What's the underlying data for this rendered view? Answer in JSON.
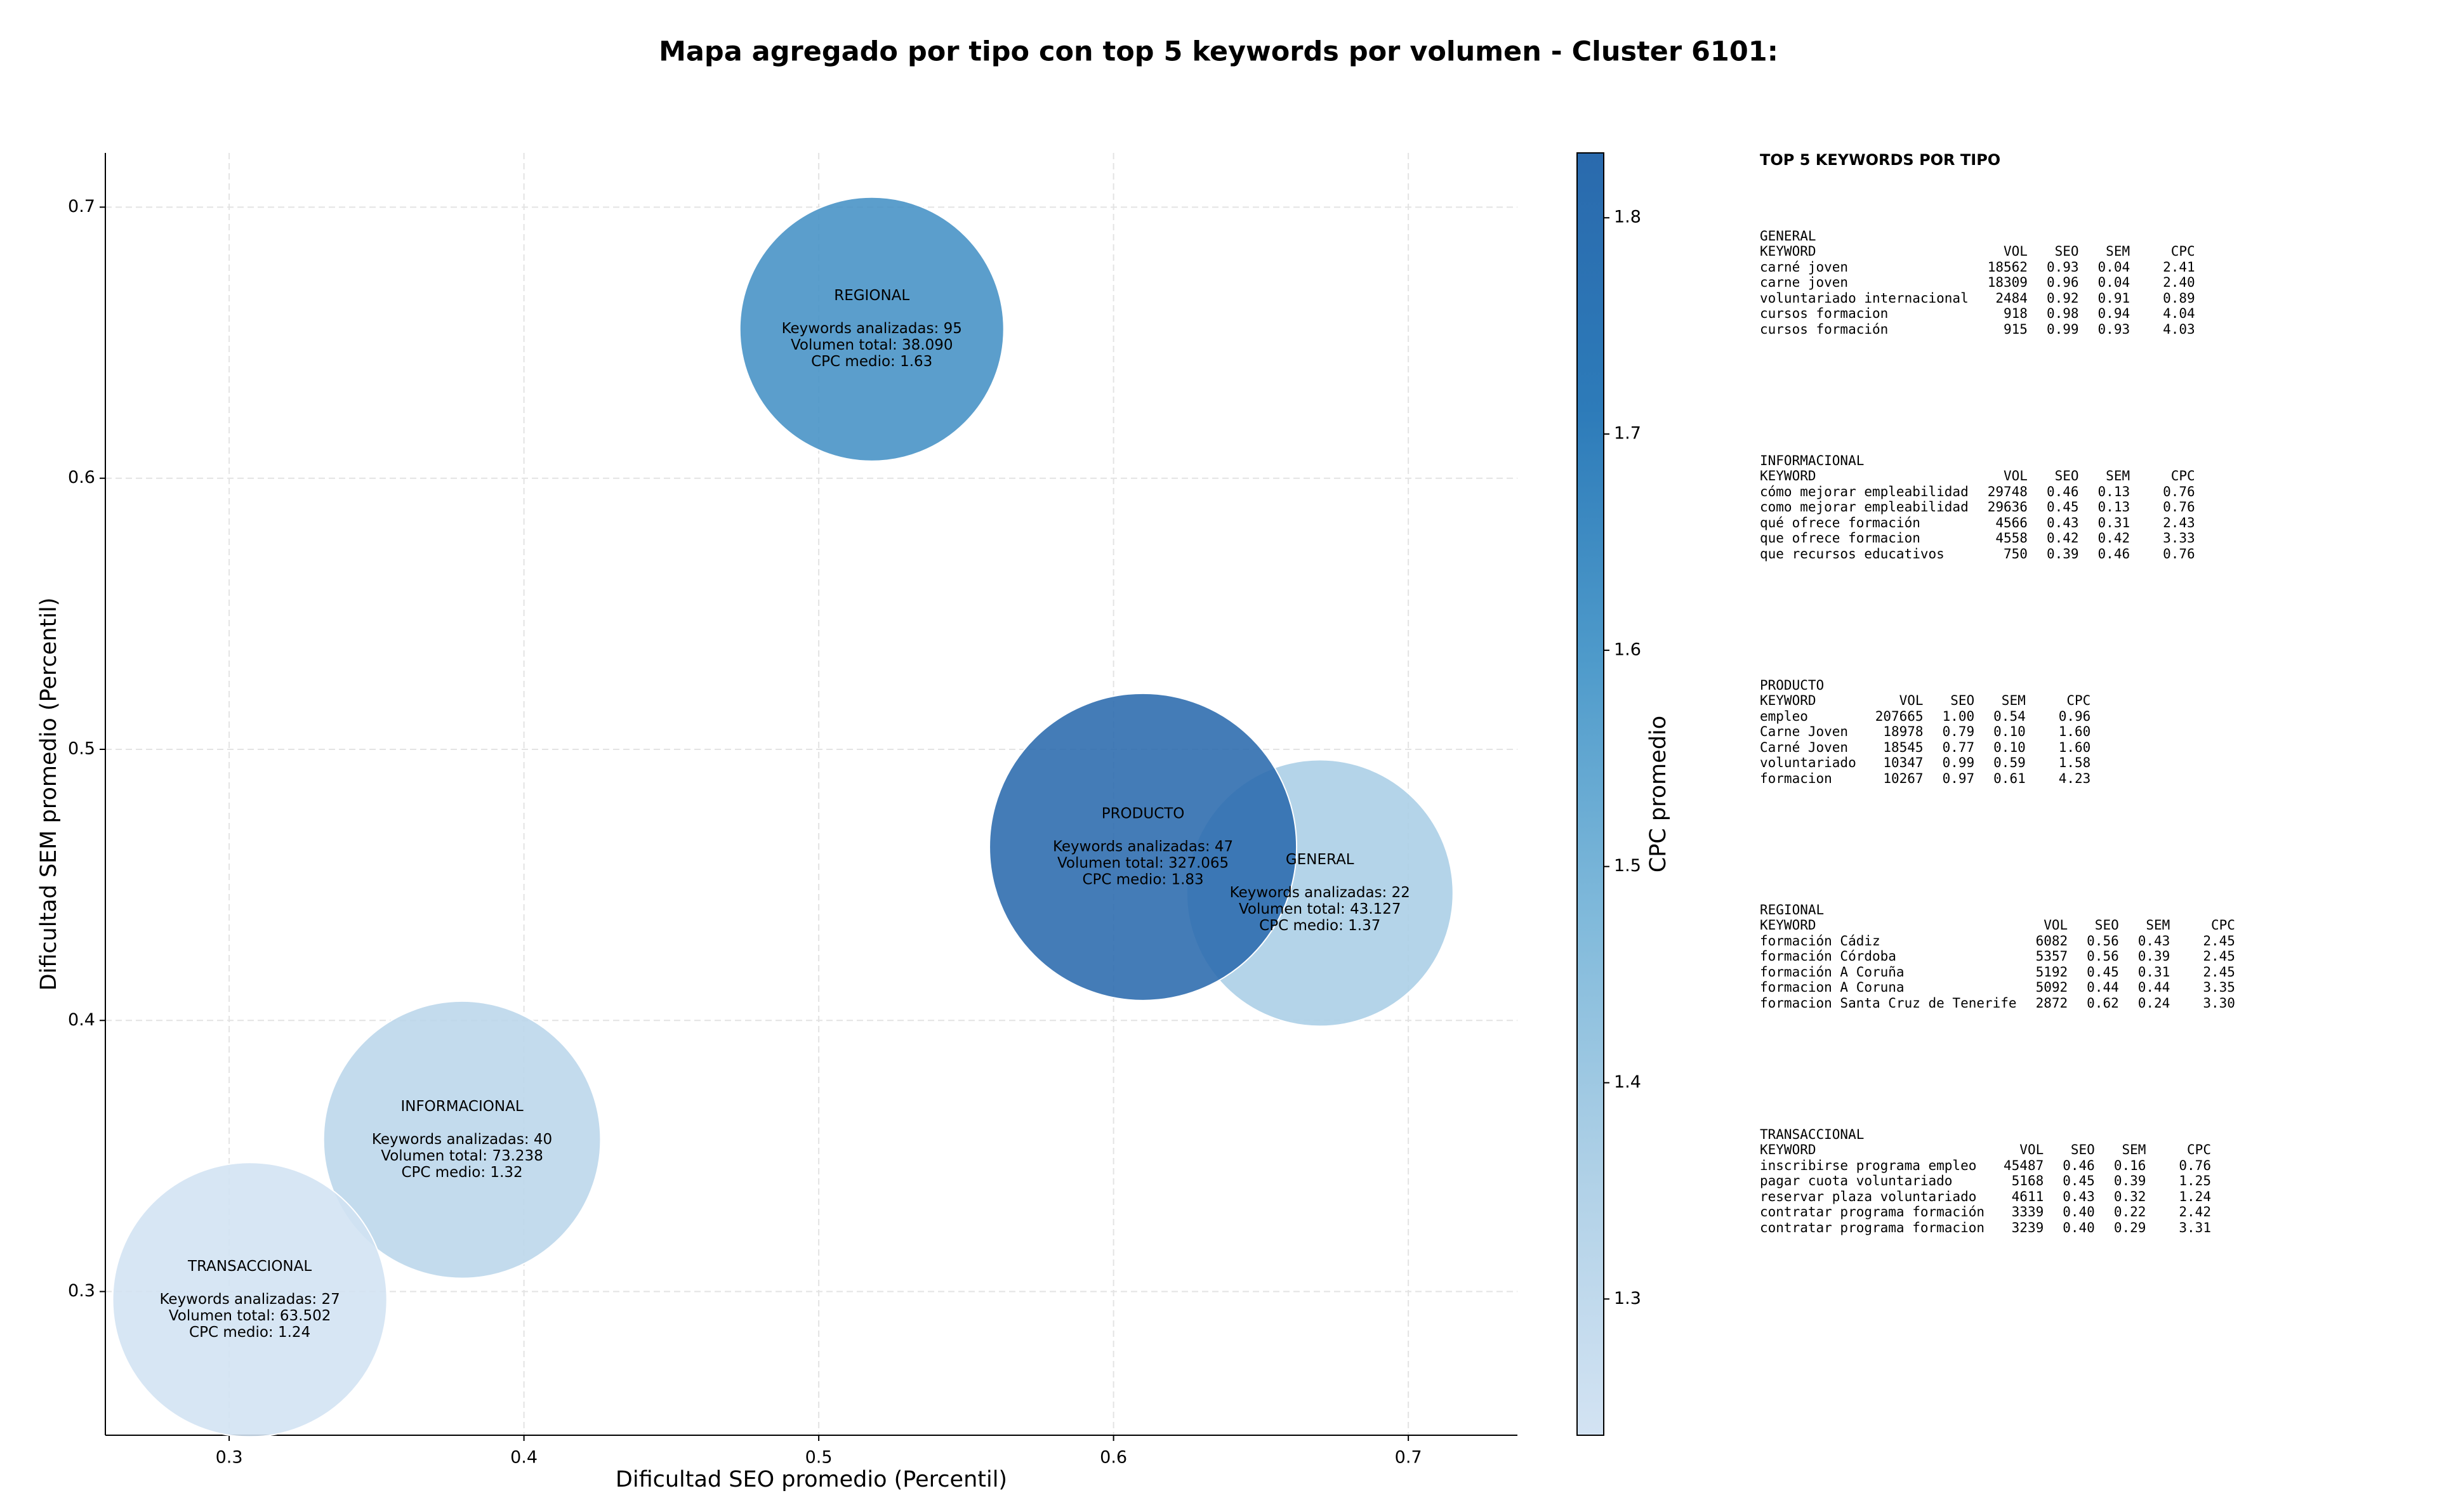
{
  "chart_data": {
    "type": "bubble",
    "title": "Mapa agregado por tipo con top 5 keywords por volumen - Cluster 6101:",
    "xlabel": "Dificultad SEO promedio (Percentil)",
    "ylabel": "Dificultad SEM promedio (Percentil)",
    "categories": [
      "GENERAL",
      "INFORMACIONAL",
      "PRODUCTO",
      "REGIONAL",
      "TRANSACCIONAL"
    ],
    "x": [
      0.67,
      0.379,
      0.61,
      0.518,
      0.307
    ],
    "values": [
      0.447,
      0.356,
      0.464,
      0.655,
      0.297
    ],
    "sizes": [
      43127,
      73238,
      327065,
      38090,
      63502
    ],
    "cpc": [
      1.37,
      1.32,
      1.83,
      1.63,
      1.24
    ],
    "annotations": [
      [
        "Keywords analizadas: 22",
        "Volumen total: 43.127",
        "CPC medio: 1.37"
      ],
      [
        "Keywords analizadas: 40",
        "Volumen total: 73.238",
        "CPC medio: 1.32"
      ],
      [
        "Keywords analizadas: 47",
        "Volumen total: 327.065",
        "CPC medio: 1.83"
      ],
      [
        "Keywords analizadas: 95",
        "Volumen total: 38.090",
        "CPC medio: 1.63"
      ],
      [
        "Keywords analizadas: 27",
        "Volumen total: 63.502",
        "CPC medio: 1.24"
      ]
    ],
    "xlim": [
      0.258,
      0.737
    ],
    "ylim": [
      0.247,
      0.72
    ],
    "xticks": [
      0.3,
      0.4,
      0.5,
      0.6,
      0.7
    ],
    "yticks": [
      0.3,
      0.4,
      0.5,
      0.6,
      0.7
    ],
    "grid": true,
    "colorscale": [
      "#d3e3f3",
      "#b0d1e7",
      "#81badb",
      "#4f9bcb",
      "#2d7bb9",
      "#2a6aad"
    ],
    "colorbar": {
      "label": "CPC promedio",
      "lim": [
        1.237,
        1.83
      ],
      "ticks": [
        1.3,
        1.4,
        1.5,
        1.6,
        1.7,
        1.8
      ]
    }
  },
  "keyword_panel": {
    "title": "TOP 5 KEYWORDS POR TIPO",
    "tables": [
      {
        "type": "GENERAL",
        "header": [
          "KEYWORD",
          "VOL",
          "SEO",
          "SEM",
          "CPC"
        ],
        "rows": [
          [
            "carné joven",
            "18562",
            "0.93",
            "0.04",
            "2.41"
          ],
          [
            "carne joven",
            "18309",
            "0.96",
            "0.04",
            "2.40"
          ],
          [
            "voluntariado internacional",
            "2484",
            "0.92",
            "0.91",
            "0.89"
          ],
          [
            "cursos formacion",
            "918",
            "0.98",
            "0.94",
            "4.04"
          ],
          [
            "cursos formación",
            "915",
            "0.99",
            "0.93",
            "4.03"
          ]
        ]
      },
      {
        "type": "INFORMACIONAL",
        "header": [
          "KEYWORD",
          "VOL",
          "SEO",
          "SEM",
          "CPC"
        ],
        "rows": [
          [
            "cómo mejorar empleabilidad",
            "29748",
            "0.46",
            "0.13",
            "0.76"
          ],
          [
            "como mejorar empleabilidad",
            "29636",
            "0.45",
            "0.13",
            "0.76"
          ],
          [
            "qué ofrece formación",
            "4566",
            "0.43",
            "0.31",
            "2.43"
          ],
          [
            "que ofrece formacion",
            "4558",
            "0.42",
            "0.42",
            "3.33"
          ],
          [
            "que recursos educativos",
            "750",
            "0.39",
            "0.46",
            "0.76"
          ]
        ]
      },
      {
        "type": "PRODUCTO",
        "header": [
          "KEYWORD",
          "VOL",
          "SEO",
          "SEM",
          "CPC"
        ],
        "rows": [
          [
            "empleo",
            "207665",
            "1.00",
            "0.54",
            "0.96"
          ],
          [
            "Carne Joven",
            "18978",
            "0.79",
            "0.10",
            "1.60"
          ],
          [
            "Carné Joven",
            "18545",
            "0.77",
            "0.10",
            "1.60"
          ],
          [
            "voluntariado",
            "10347",
            "0.99",
            "0.59",
            "1.58"
          ],
          [
            "formacion",
            "10267",
            "0.97",
            "0.61",
            "4.23"
          ]
        ]
      },
      {
        "type": "REGIONAL",
        "header": [
          "KEYWORD",
          "VOL",
          "SEO",
          "SEM",
          "CPC"
        ],
        "rows": [
          [
            "formación Cádiz",
            "6082",
            "0.56",
            "0.43",
            "2.45"
          ],
          [
            "formación Córdoba",
            "5357",
            "0.56",
            "0.39",
            "2.45"
          ],
          [
            "formación A Coruña",
            "5192",
            "0.45",
            "0.31",
            "2.45"
          ],
          [
            "formacion A Coruna",
            "5092",
            "0.44",
            "0.44",
            "3.35"
          ],
          [
            "formacion Santa Cruz de Tenerife",
            "2872",
            "0.62",
            "0.24",
            "3.30"
          ]
        ]
      },
      {
        "type": "TRANSACCIONAL",
        "header": [
          "KEYWORD",
          "VOL",
          "SEO",
          "SEM",
          "CPC"
        ],
        "rows": [
          [
            "inscribirse programa empleo",
            "45487",
            "0.46",
            "0.16",
            "0.76"
          ],
          [
            "pagar cuota voluntariado",
            "5168",
            "0.45",
            "0.39",
            "1.25"
          ],
          [
            "reservar plaza voluntariado",
            "4611",
            "0.43",
            "0.32",
            "1.24"
          ],
          [
            "contratar programa formación",
            "3339",
            "0.40",
            "0.22",
            "2.42"
          ],
          [
            "contratar programa formacion",
            "3239",
            "0.40",
            "0.29",
            "3.31"
          ]
        ]
      }
    ]
  }
}
